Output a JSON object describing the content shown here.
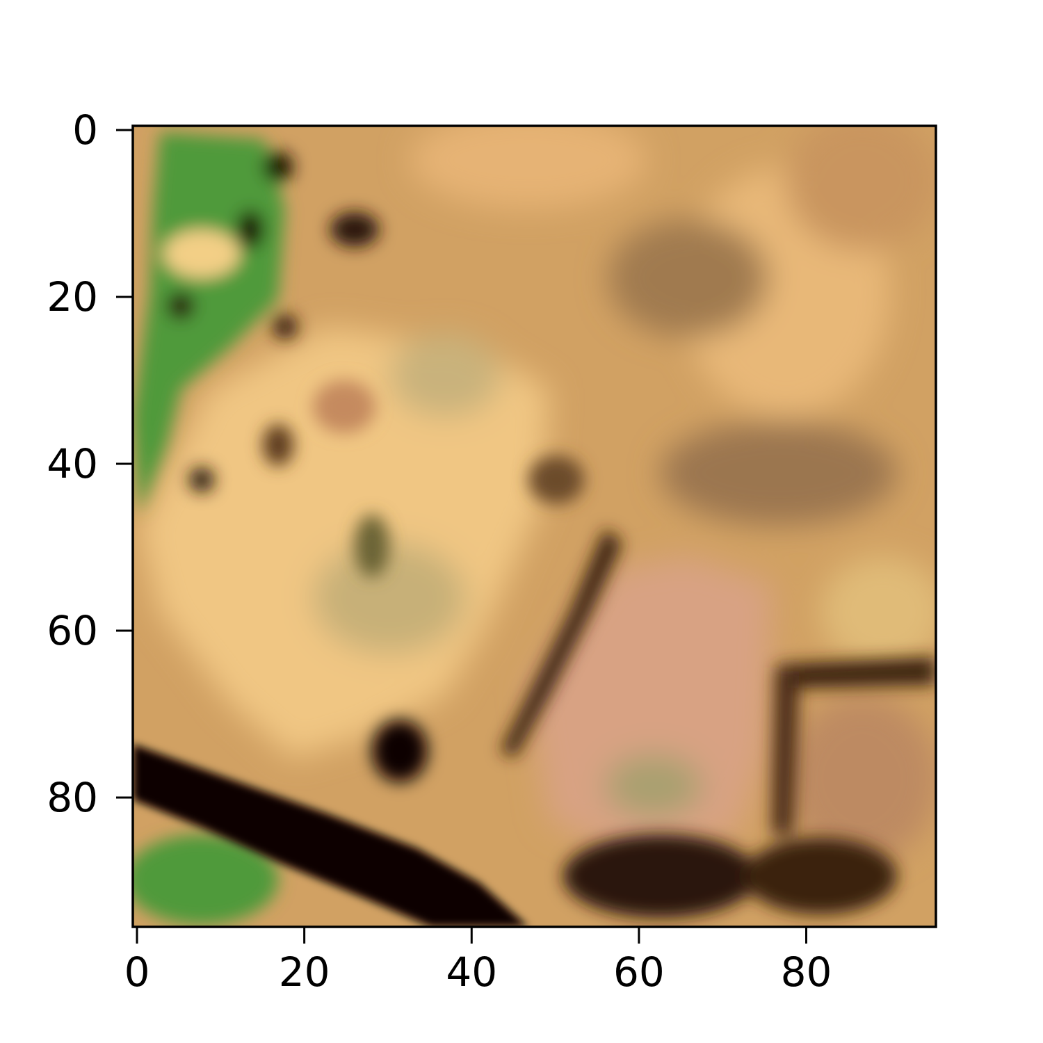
{
  "image": {
    "kind": "satellite-rgb-patch",
    "description_colors": {
      "base": "#d1a163",
      "light": "#f0c683",
      "pink": "#d99c80",
      "brown": "#96704a",
      "dark_brown": "#3a200c",
      "black": "#0b0300",
      "green": "#4f9a3b",
      "olive": "#b3a06a"
    }
  },
  "axes": {
    "x_ticks": [
      {
        "value": 0,
        "label": "0"
      },
      {
        "value": 20,
        "label": "20"
      },
      {
        "value": 40,
        "label": "40"
      },
      {
        "value": 60,
        "label": "60"
      },
      {
        "value": 80,
        "label": "80"
      }
    ],
    "y_ticks": [
      {
        "value": 0,
        "label": "0"
      },
      {
        "value": 20,
        "label": "20"
      },
      {
        "value": 40,
        "label": "40"
      },
      {
        "value": 60,
        "label": "60"
      },
      {
        "value": 80,
        "label": "80"
      }
    ],
    "x_range": [
      0,
      96
    ],
    "y_range": [
      0,
      96
    ]
  }
}
